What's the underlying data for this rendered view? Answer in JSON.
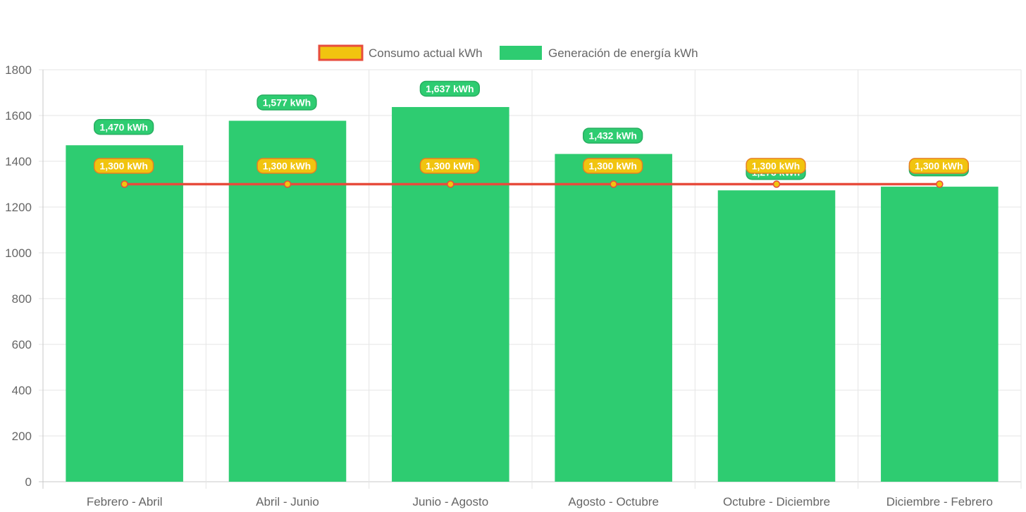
{
  "chart_data": {
    "type": "bar",
    "categories": [
      "Febrero - Abril",
      "Abril - Junio",
      "Junio - Agosto",
      "Agosto - Octubre",
      "Octubre - Diciembre",
      "Diciembre - Febrero"
    ],
    "series": [
      {
        "name": "Consumo actual kWh",
        "type": "line",
        "values": [
          1300,
          1300,
          1300,
          1300,
          1300,
          1300
        ],
        "labels": [
          "1,300 kWh",
          "1,300 kWh",
          "1,300 kWh",
          "1,300 kWh",
          "1,300 kWh",
          "1,300 kWh"
        ],
        "color": "#e74c3c",
        "fill_color": "#f1c40f"
      },
      {
        "name": "Generación de energía kWh",
        "type": "bar",
        "values": [
          1470,
          1577,
          1637,
          1432,
          1273,
          1289
        ],
        "labels": [
          "1,470 kWh",
          "1,577 kWh",
          "1,637 kWh",
          "1,432 kWh",
          "1,273 kWh",
          "1,289 kWh"
        ],
        "color": "#2ecc71"
      }
    ],
    "ylim": [
      0,
      1800
    ],
    "yticks": [
      "0",
      "200",
      "400",
      "600",
      "800",
      "1000",
      "1200",
      "1400",
      "1600",
      "1800"
    ],
    "grid": true,
    "legend_position": "top-center",
    "title": "",
    "xlabel": "",
    "ylabel": ""
  }
}
